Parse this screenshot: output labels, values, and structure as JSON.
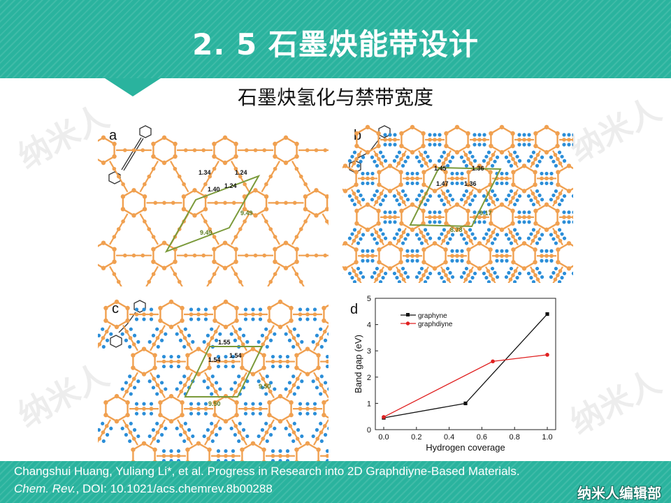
{
  "slide": {
    "title": "2. 5  石墨炔能带设计",
    "subtitle": "石墨炔氢化与禁带宽度",
    "watermark": "纳米人",
    "colors": {
      "header": "#2ab39e",
      "atom_carbon": "#f0a050",
      "atom_hydrogen": "#2b8ed8",
      "cell": "#7a9a3a"
    }
  },
  "panels": {
    "a": {
      "label": "a",
      "bonds": [
        "1.34",
        "1.24",
        "1.40",
        "1.24"
      ],
      "cell_sides": [
        "9.49",
        "9.49"
      ]
    },
    "b": {
      "label": "b",
      "bonds": [
        "1.45",
        "1.36",
        "1.47",
        "1.36"
      ],
      "cell_sides": [
        "9.17",
        "8.78"
      ]
    },
    "c": {
      "label": "c",
      "bonds": [
        "1.55",
        "1.54",
        "1.54"
      ],
      "cell_sides": [
        "9.50",
        "9.50"
      ]
    }
  },
  "chart_data": {
    "type": "line",
    "panel_label": "d",
    "xlabel": "Hydrogen coverage",
    "ylabel": "Band gap (eV)",
    "xlim": [
      0.0,
      1.0
    ],
    "ylim": [
      0,
      5
    ],
    "xticks": [
      "0.0",
      "0.2",
      "0.4",
      "0.6",
      "0.8",
      "1.0"
    ],
    "yticks": [
      "0",
      "1",
      "2",
      "3",
      "4",
      "5"
    ],
    "legend_position": "top-left",
    "series": [
      {
        "name": "graphyne",
        "color": "#111111",
        "marker": "square",
        "x": [
          0.0,
          0.5,
          1.0
        ],
        "y": [
          0.45,
          1.0,
          4.4
        ]
      },
      {
        "name": "graphdiyne",
        "color": "#e02020",
        "marker": "circle",
        "x": [
          0.0,
          0.667,
          1.0
        ],
        "y": [
          0.48,
          2.6,
          2.85
        ]
      }
    ]
  },
  "footer": {
    "citation_line1": "Changshui Huang, Yuliang Li*, et al. Progress in Research into 2D Graphdiyne-Based Materials.",
    "journal": "Chem. Rev.",
    "citation_line2_rest": ", DOI: 10.1021/acs.chemrev.8b00288",
    "brand": "纳米人编辑部"
  }
}
